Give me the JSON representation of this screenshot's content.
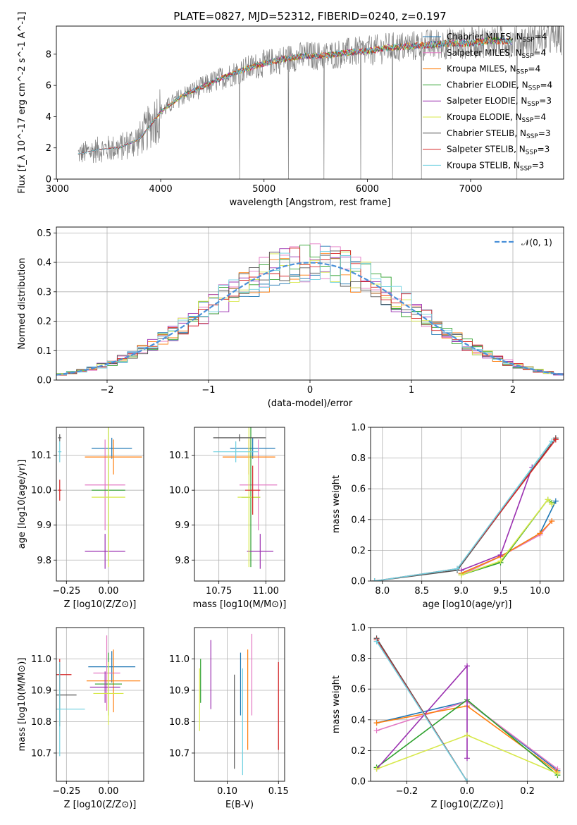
{
  "figure_title": "PLATE=0827, MJD=52312, FIBERID=0240, z=0.197",
  "colors": {
    "Chabrier MILES": "#1f77b4",
    "Salpeter MILES": "#e377c2",
    "Kroupa MILES": "#ff7f0e",
    "Chabrier ELODIE": "#2ca02c",
    "Salpeter ELODIE": "#9b30b0",
    "Kroupa ELODIE": "#d7e84a",
    "Chabrier STELIB": "#555555",
    "Salpeter STELIB": "#d62728",
    "Kroupa STELIB": "#6fd0e0",
    "data_spectrum": "#808080",
    "normal_curve": "#4a90d9"
  },
  "chart_data": [
    {
      "id": "spectrum",
      "type": "line",
      "title": "PLATE=0827, MJD=52312, FIBERID=0240, z=0.197",
      "xlabel": "wavelength [Angstrom, rest frame]",
      "ylabel": "Flux [f_λ 10^-17 erg cm^-2 s^-1 A^-1]",
      "xlim": [
        2990,
        7900
      ],
      "ylim": [
        0,
        9.8
      ],
      "xticks": [
        "3000",
        "4000",
        "5000",
        "6000",
        "7000"
      ],
      "yticks": [
        "0",
        "2",
        "4",
        "6",
        "8"
      ],
      "grid": false,
      "legend_position": "right",
      "legend": [
        {
          "label": "Chabrier MILES, N",
          "sub": "SSP",
          "suffix": "=4"
        },
        {
          "label": "Salpeter MILES, N",
          "sub": "SSP",
          "suffix": "=4"
        },
        {
          "label": "Kroupa MILES, N",
          "sub": "SSP",
          "suffix": "=4"
        },
        {
          "label": "Chabrier ELODIE, N",
          "sub": "SSP",
          "suffix": "=4"
        },
        {
          "label": "Salpeter ELODIE, N",
          "sub": "SSP",
          "suffix": "=3"
        },
        {
          "label": "Kroupa ELODIE, N",
          "sub": "SSP",
          "suffix": "=4"
        },
        {
          "label": "Chabrier STELIB, N",
          "sub": "SSP",
          "suffix": "=3"
        },
        {
          "label": "Salpeter STELIB, N",
          "sub": "SSP",
          "suffix": "=3"
        },
        {
          "label": "Kroupa STELIB, N",
          "sub": "SSP",
          "suffix": "=3"
        }
      ],
      "continuum_x": [
        3200,
        3400,
        3600,
        3800,
        4000,
        4200,
        4400,
        4600,
        4800,
        5000,
        5200,
        5400,
        5600,
        5800,
        6000,
        6200,
        6400,
        6600,
        6800,
        7000,
        7200,
        7400,
        7600,
        7800,
        7880
      ],
      "continuum_y": [
        1.6,
        1.9,
        2.0,
        2.6,
        4.3,
        5.3,
        5.9,
        6.5,
        7.0,
        7.4,
        7.7,
        7.9,
        7.9,
        8.1,
        8.2,
        8.4,
        8.5,
        8.6,
        8.7,
        8.7,
        8.9,
        8.8,
        8.9,
        9.0,
        9.0
      ]
    },
    {
      "id": "residuals",
      "type": "step",
      "xlabel": "(data-model)/error",
      "ylabel": "Normed distribution",
      "xlim": [
        -2.5,
        2.5
      ],
      "ylim": [
        0,
        0.52
      ],
      "xticks": [
        "−2",
        "−1",
        "0",
        "1",
        "2"
      ],
      "yticks": [
        "0.0",
        "0.1",
        "0.2",
        "0.3",
        "0.4",
        "0.5"
      ],
      "grid": true,
      "legend": "𝒩(0, 1)",
      "legend_position": "top-right",
      "bin_width": 0.1,
      "reference_curve": "gaussian N(0,1)"
    },
    {
      "id": "age_vs_Z",
      "type": "errorbar",
      "xlabel": "Z [log10(Z/Z⊙)]",
      "ylabel": "age [log10(age/yr)]",
      "xlim": [
        -0.31,
        0.21
      ],
      "ylim": [
        9.74,
        10.18
      ],
      "xticks": [
        "−0.25",
        "0.00"
      ],
      "yticks": [
        "9.8",
        "9.9",
        "10.0",
        "10.1"
      ],
      "grid": true,
      "points": [
        {
          "model": "Chabrier MILES",
          "x": 0.02,
          "y": 10.12,
          "xerr": 0.12,
          "yerr": 0.03
        },
        {
          "model": "Salpeter MILES",
          "x": -0.02,
          "y": 10.015,
          "xerr": 0.12,
          "yerr": 0.13
        },
        {
          "model": "Kroupa MILES",
          "x": 0.03,
          "y": 10.095,
          "xerr": 0.17,
          "yerr": 0.05
        },
        {
          "model": "Chabrier ELODIE",
          "x": 0.0,
          "y": 10.0,
          "xerr": 0.1,
          "yerr": 0.2
        },
        {
          "model": "Salpeter ELODIE",
          "x": -0.02,
          "y": 9.825,
          "xerr": 0.12,
          "yerr": 0.05
        },
        {
          "model": "Kroupa ELODIE",
          "x": 0.0,
          "y": 9.98,
          "xerr": 0.1,
          "yerr": 0.2
        },
        {
          "model": "Chabrier STELIB",
          "x": -0.29,
          "y": 10.15,
          "xerr": 0.01,
          "yerr": 0.01
        },
        {
          "model": "Salpeter STELIB",
          "x": -0.29,
          "y": 10.0,
          "xerr": 0.01,
          "yerr": 0.03
        },
        {
          "model": "Kroupa STELIB",
          "x": -0.29,
          "y": 10.11,
          "xerr": 0.01,
          "yerr": 0.03
        }
      ]
    },
    {
      "id": "age_vs_mass",
      "type": "errorbar",
      "xlabel": "mass [log10(M/M⊙)]",
      "ylabel": "",
      "xlim": [
        10.62,
        11.1
      ],
      "ylim": [
        9.74,
        10.18
      ],
      "xticks": [
        "10.75",
        "11.00"
      ],
      "yticks": [
        "9.8",
        "9.9",
        "10.0",
        "10.1"
      ],
      "grid": true,
      "points": [
        {
          "model": "Chabrier MILES",
          "x": 10.93,
          "y": 10.12,
          "xerr": 0.12,
          "yerr": 0.03
        },
        {
          "model": "Salpeter MILES",
          "x": 10.96,
          "y": 10.015,
          "xerr": 0.1,
          "yerr": 0.13
        },
        {
          "model": "Kroupa MILES",
          "x": 10.91,
          "y": 10.095,
          "xerr": 0.14,
          "yerr": 0.05
        },
        {
          "model": "Chabrier ELODIE",
          "x": 10.92,
          "y": 9.98,
          "xerr": 0.05,
          "yerr": 0.2
        },
        {
          "model": "Salpeter ELODIE",
          "x": 10.97,
          "y": 9.825,
          "xerr": 0.07,
          "yerr": 0.05
        },
        {
          "model": "Kroupa ELODIE",
          "x": 10.91,
          "y": 9.98,
          "xerr": 0.06,
          "yerr": 0.2
        },
        {
          "model": "Chabrier STELIB",
          "x": 10.86,
          "y": 10.15,
          "xerr": 0.14,
          "yerr": 0.01
        },
        {
          "model": "Salpeter STELIB",
          "x": 10.93,
          "y": 10.0,
          "xerr": 0.04,
          "yerr": 0.07
        },
        {
          "model": "Kroupa STELIB",
          "x": 10.84,
          "y": 10.11,
          "xerr": 0.12,
          "yerr": 0.03
        }
      ]
    },
    {
      "id": "weight_vs_age",
      "type": "line",
      "xlabel": "age [log10(age/yr)]",
      "ylabel": "mass weight",
      "xlim": [
        7.85,
        10.3
      ],
      "ylim": [
        0,
        1.0
      ],
      "xticks": [
        "8.0",
        "8.5",
        "9.0",
        "9.5",
        "10.0"
      ],
      "yticks": [
        "0.0",
        "0.2",
        "0.4",
        "0.6",
        "0.8",
        "1.0"
      ],
      "grid": true,
      "series": [
        {
          "name": "Chabrier MILES",
          "x": [
            9.0,
            9.5,
            10.0,
            10.2
          ],
          "y": [
            0.05,
            0.16,
            0.31,
            0.52
          ]
        },
        {
          "name": "Salpeter MILES",
          "x": [
            9.0,
            9.5,
            10.0,
            10.15
          ],
          "y": [
            0.04,
            0.16,
            0.3,
            0.39
          ]
        },
        {
          "name": "Kroupa MILES",
          "x": [
            9.0,
            9.5,
            10.0,
            10.15
          ],
          "y": [
            0.05,
            0.16,
            0.31,
            0.39
          ]
        },
        {
          "name": "Chabrier ELODIE",
          "x": [
            9.0,
            9.5,
            10.1,
            10.15
          ],
          "y": [
            0.04,
            0.12,
            0.53,
            0.51
          ]
        },
        {
          "name": "Salpeter ELODIE",
          "x": [
            9.0,
            9.5,
            9.9
          ],
          "y": [
            0.07,
            0.17,
            0.74
          ]
        },
        {
          "name": "Kroupa ELODIE",
          "x": [
            9.0,
            9.5,
            10.1,
            10.15
          ],
          "y": [
            0.04,
            0.13,
            0.53,
            0.5
          ]
        },
        {
          "name": "Chabrier STELIB",
          "x": [
            7.9,
            8.95,
            10.2
          ],
          "y": [
            0.0,
            0.07,
            0.93
          ]
        },
        {
          "name": "Salpeter STELIB",
          "x": [
            7.9,
            8.95,
            10.2
          ],
          "y": [
            0.0,
            0.08,
            0.92
          ]
        },
        {
          "name": "Kroupa STELIB",
          "x": [
            7.9,
            8.95,
            10.15
          ],
          "y": [
            0.0,
            0.08,
            0.91
          ]
        }
      ]
    },
    {
      "id": "mass_vs_Z",
      "type": "errorbar",
      "xlabel": "Z [log10(Z/Z⊙)]",
      "ylabel": "mass [log10(M/M⊙)]",
      "xlim": [
        -0.31,
        0.21
      ],
      "ylim": [
        10.61,
        11.1
      ],
      "xticks": [
        "−0.25",
        "0.00"
      ],
      "yticks": [
        "10.7",
        "10.8",
        "10.9",
        "11.0"
      ],
      "grid": true,
      "points": [
        {
          "model": "Chabrier MILES",
          "x": 0.02,
          "y": 10.975,
          "xerr": 0.14,
          "yerr": 0.05
        },
        {
          "model": "Salpeter MILES",
          "x": -0.01,
          "y": 10.955,
          "xerr": 0.08,
          "yerr": 0.12
        },
        {
          "model": "Kroupa MILES",
          "x": 0.03,
          "y": 10.93,
          "xerr": 0.16,
          "yerr": 0.1
        },
        {
          "model": "Chabrier ELODIE",
          "x": 0.0,
          "y": 10.92,
          "xerr": 0.08,
          "yerr": 0.1
        },
        {
          "model": "Salpeter ELODIE",
          "x": -0.02,
          "y": 10.91,
          "xerr": 0.09,
          "yerr": 0.05
        },
        {
          "model": "Kroupa ELODIE",
          "x": 0.0,
          "y": 10.89,
          "xerr": 0.09,
          "yerr": 0.1
        },
        {
          "model": "Chabrier STELIB",
          "x": -0.29,
          "y": 10.885,
          "xerr": 0.1,
          "yerr": 0.1
        },
        {
          "model": "Salpeter STELIB",
          "x": -0.29,
          "y": 10.95,
          "xerr": 0.07,
          "yerr": 0.05
        },
        {
          "model": "Kroupa STELIB",
          "x": -0.29,
          "y": 10.84,
          "xerr": 0.15,
          "yerr": 0.15
        }
      ]
    },
    {
      "id": "mass_vs_EBV",
      "type": "errorbar",
      "xlabel": "E(B-V)",
      "ylabel": "",
      "xlim": [
        0.068,
        0.156
      ],
      "ylim": [
        10.61,
        11.1
      ],
      "xticks": [
        "0.10",
        "0.15"
      ],
      "yticks": [
        "10.7",
        "10.8",
        "10.9",
        "11.0"
      ],
      "grid": true,
      "points": [
        {
          "model": "Chabrier MILES",
          "x": 0.113,
          "y": 10.92,
          "xerr": 0,
          "yerr": 0.1
        },
        {
          "model": "Salpeter MILES",
          "x": 0.124,
          "y": 10.95,
          "xerr": 0,
          "yerr": 0.13
        },
        {
          "model": "Kroupa MILES",
          "x": 0.12,
          "y": 10.87,
          "xerr": 0,
          "yerr": 0.16
        },
        {
          "model": "Chabrier ELODIE",
          "x": 0.074,
          "y": 10.93,
          "xerr": 0,
          "yerr": 0.07
        },
        {
          "model": "Salpeter ELODIE",
          "x": 0.084,
          "y": 10.95,
          "xerr": 0,
          "yerr": 0.11
        },
        {
          "model": "Kroupa ELODIE",
          "x": 0.073,
          "y": 10.87,
          "xerr": 0,
          "yerr": 0.1
        },
        {
          "model": "Chabrier STELIB",
          "x": 0.107,
          "y": 10.8,
          "xerr": 0,
          "yerr": 0.15
        },
        {
          "model": "Salpeter STELIB",
          "x": 0.15,
          "y": 10.85,
          "xerr": 0,
          "yerr": 0.14
        },
        {
          "model": "Kroupa STELIB",
          "x": 0.115,
          "y": 10.8,
          "xerr": 0,
          "yerr": 0.17
        }
      ]
    },
    {
      "id": "weight_vs_Z",
      "type": "line",
      "xlabel": "Z [log10(Z/Z⊙)]",
      "ylabel": "mass weight",
      "xlim": [
        -0.32,
        0.32
      ],
      "ylim": [
        0,
        1.0
      ],
      "xticks": [
        "−0.2",
        "0.0",
        "0.2"
      ],
      "yticks": [
        "0.0",
        "0.2",
        "0.4",
        "0.6",
        "0.8",
        "1.0"
      ],
      "grid": true,
      "series": [
        {
          "name": "Chabrier MILES",
          "x": [
            -0.3,
            0.0,
            0.3
          ],
          "y": [
            0.38,
            0.52,
            0.07
          ]
        },
        {
          "name": "Salpeter MILES",
          "x": [
            -0.3,
            0.0,
            0.3
          ],
          "y": [
            0.33,
            0.52,
            0.08
          ]
        },
        {
          "name": "Kroupa MILES",
          "x": [
            -0.3,
            0.0,
            0.3
          ],
          "y": [
            0.38,
            0.49,
            0.06
          ]
        },
        {
          "name": "Chabrier ELODIE",
          "x": [
            -0.3,
            0.0,
            0.3
          ],
          "y": [
            0.09,
            0.53,
            0.04
          ]
        },
        {
          "name": "Salpeter ELODIE",
          "x": [
            -0.3,
            0.0,
            0.0
          ],
          "y": [
            0.08,
            0.75,
            0.15
          ]
        },
        {
          "name": "Kroupa ELODIE",
          "x": [
            -0.3,
            0.0,
            0.3
          ],
          "y": [
            0.08,
            0.3,
            0.05
          ]
        },
        {
          "name": "Chabrier STELIB",
          "x": [
            -0.3,
            0.0
          ],
          "y": [
            0.93,
            0.0
          ]
        },
        {
          "name": "Salpeter STELIB",
          "x": [
            -0.3,
            0.0
          ],
          "y": [
            0.92,
            0.0
          ]
        },
        {
          "name": "Kroupa STELIB",
          "x": [
            -0.3,
            0.0
          ],
          "y": [
            0.91,
            0.0
          ]
        }
      ]
    }
  ]
}
